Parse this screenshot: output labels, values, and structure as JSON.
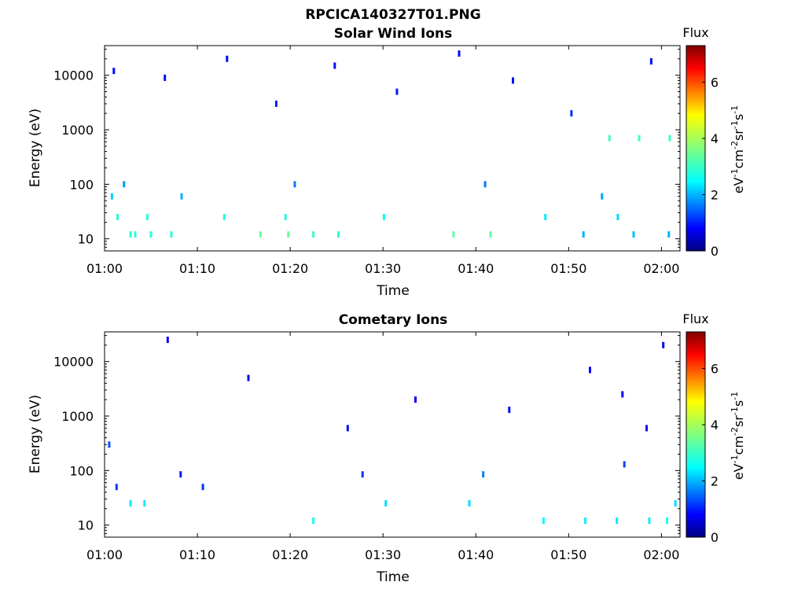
{
  "figure": {
    "title": "RPCICA140327T01.PNG"
  },
  "chart_data": [
    {
      "type": "heatmap",
      "title": "Solar Wind Ions",
      "xlabel": "Time",
      "ylabel": "Energy (eV)",
      "x_ticks": [
        "01:00",
        "01:10",
        "01:20",
        "01:30",
        "01:40",
        "01:50",
        "02:00"
      ],
      "y_ticks": [
        "10",
        "100",
        "1000",
        "10000"
      ],
      "x_range": [
        "01:00",
        "02:02"
      ],
      "y_range_eV": [
        6,
        35000
      ],
      "y_scale": "log",
      "colorbar": {
        "label": "eV-1cm-2sr-1s-1",
        "label_parts": [
          "eV",
          "-1",
          "cm",
          "-2",
          "sr",
          "-1",
          "s",
          "-1"
        ],
        "title": "Flux",
        "ticks": [
          "0",
          "2",
          "4",
          "6"
        ],
        "range": [
          0,
          7.3
        ],
        "colormap": "jet"
      },
      "cells": [
        {
          "t": 2.8,
          "e": 12,
          "v": 3.0
        },
        {
          "t": 3.3,
          "e": 12,
          "v": 3.0
        },
        {
          "t": 5.0,
          "e": 12,
          "v": 3.0
        },
        {
          "t": 7.2,
          "e": 12,
          "v": 3.0
        },
        {
          "t": 16.8,
          "e": 12,
          "v": 3.5
        },
        {
          "t": 19.8,
          "e": 12,
          "v": 3.5
        },
        {
          "t": 22.5,
          "e": 12,
          "v": 3.1
        },
        {
          "t": 25.2,
          "e": 12,
          "v": 3.0
        },
        {
          "t": 37.6,
          "e": 12,
          "v": 3.4
        },
        {
          "t": 41.6,
          "e": 12,
          "v": 3.4
        },
        {
          "t": 51.6,
          "e": 12,
          "v": 2.2
        },
        {
          "t": 57.0,
          "e": 12,
          "v": 2.3
        },
        {
          "t": 60.8,
          "e": 12,
          "v": 2.2
        },
        {
          "t": 1.4,
          "e": 25,
          "v": 3.0
        },
        {
          "t": 4.6,
          "e": 25,
          "v": 3.0
        },
        {
          "t": 12.9,
          "e": 25,
          "v": 3.0
        },
        {
          "t": 19.5,
          "e": 25,
          "v": 3.0
        },
        {
          "t": 30.1,
          "e": 25,
          "v": 2.8
        },
        {
          "t": 47.5,
          "e": 25,
          "v": 2.6
        },
        {
          "t": 55.3,
          "e": 25,
          "v": 2.5
        },
        {
          "t": 0.8,
          "e": 60,
          "v": 2.4
        },
        {
          "t": 8.3,
          "e": 60,
          "v": 2.2
        },
        {
          "t": 53.6,
          "e": 60,
          "v": 2.1
        },
        {
          "t": 2.1,
          "e": 100,
          "v": 2.0
        },
        {
          "t": 20.5,
          "e": 100,
          "v": 1.8
        },
        {
          "t": 41.0,
          "e": 100,
          "v": 1.8
        },
        {
          "t": 54.4,
          "e": 700,
          "v": 3.2
        },
        {
          "t": 57.6,
          "e": 700,
          "v": 3.2
        },
        {
          "t": 60.9,
          "e": 700,
          "v": 3.2
        },
        {
          "t": 1.0,
          "e": 12000,
          "v": 1.0
        },
        {
          "t": 6.5,
          "e": 9000,
          "v": 1.0
        },
        {
          "t": 13.2,
          "e": 20000,
          "v": 1.0
        },
        {
          "t": 18.5,
          "e": 3000,
          "v": 1.1
        },
        {
          "t": 24.8,
          "e": 15000,
          "v": 1.0
        },
        {
          "t": 31.5,
          "e": 5000,
          "v": 1.1
        },
        {
          "t": 38.2,
          "e": 25000,
          "v": 1.0
        },
        {
          "t": 44.0,
          "e": 8000,
          "v": 1.0
        },
        {
          "t": 50.3,
          "e": 2000,
          "v": 1.2
        },
        {
          "t": 58.9,
          "e": 18000,
          "v": 1.0
        }
      ]
    },
    {
      "type": "heatmap",
      "title": "Cometary Ions",
      "xlabel": "Time",
      "ylabel": "Energy (eV)",
      "x_ticks": [
        "01:00",
        "01:10",
        "01:20",
        "01:30",
        "01:40",
        "01:50",
        "02:00"
      ],
      "y_ticks": [
        "10",
        "100",
        "1000",
        "10000"
      ],
      "x_range": [
        "01:00",
        "02:02"
      ],
      "y_range_eV": [
        6,
        35000
      ],
      "y_scale": "log",
      "colorbar": {
        "label": "eV-1cm-2sr-1s-1",
        "label_parts": [
          "eV",
          "-1",
          "cm",
          "-2",
          "sr",
          "-1",
          "s",
          "-1"
        ],
        "title": "Flux",
        "ticks": [
          "0",
          "2",
          "4",
          "6"
        ],
        "range": [
          0,
          7.3
        ],
        "colormap": "jet"
      },
      "cells": [
        {
          "t": 22.5,
          "e": 12,
          "v": 2.8
        },
        {
          "t": 47.3,
          "e": 12,
          "v": 2.7
        },
        {
          "t": 51.8,
          "e": 12,
          "v": 2.6
        },
        {
          "t": 55.2,
          "e": 12,
          "v": 2.6
        },
        {
          "t": 58.7,
          "e": 12,
          "v": 2.6
        },
        {
          "t": 60.6,
          "e": 12,
          "v": 2.8
        },
        {
          "t": 2.8,
          "e": 25,
          "v": 2.6
        },
        {
          "t": 4.3,
          "e": 25,
          "v": 2.6
        },
        {
          "t": 30.3,
          "e": 25,
          "v": 2.5
        },
        {
          "t": 39.3,
          "e": 25,
          "v": 2.5
        },
        {
          "t": 61.5,
          "e": 25,
          "v": 2.5
        },
        {
          "t": 1.3,
          "e": 50,
          "v": 1.3
        },
        {
          "t": 8.2,
          "e": 85,
          "v": 1.1
        },
        {
          "t": 10.6,
          "e": 50,
          "v": 1.3
        },
        {
          "t": 27.8,
          "e": 85,
          "v": 1.3
        },
        {
          "t": 40.8,
          "e": 85,
          "v": 1.8
        },
        {
          "t": 56.0,
          "e": 130,
          "v": 1.4
        },
        {
          "t": 0.5,
          "e": 300,
          "v": 1.5
        },
        {
          "t": 6.8,
          "e": 25000,
          "v": 0.9
        },
        {
          "t": 15.5,
          "e": 5000,
          "v": 0.9
        },
        {
          "t": 26.2,
          "e": 600,
          "v": 1.0
        },
        {
          "t": 33.5,
          "e": 2000,
          "v": 0.9
        },
        {
          "t": 43.6,
          "e": 1300,
          "v": 1.0
        },
        {
          "t": 52.3,
          "e": 7000,
          "v": 0.9
        },
        {
          "t": 55.8,
          "e": 2500,
          "v": 0.9
        },
        {
          "t": 58.4,
          "e": 600,
          "v": 1.0
        },
        {
          "t": 60.2,
          "e": 20000,
          "v": 0.9
        }
      ]
    }
  ]
}
